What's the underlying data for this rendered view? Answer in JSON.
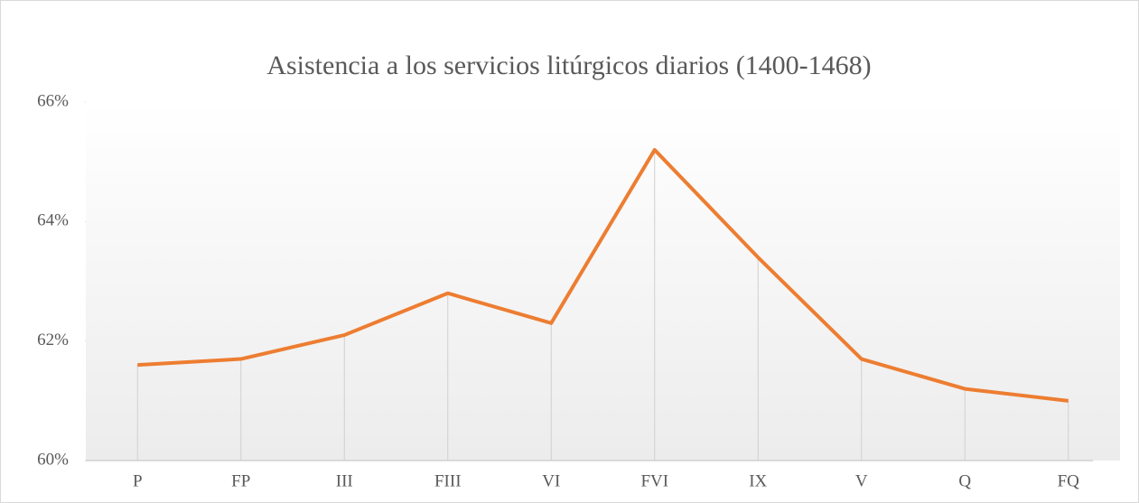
{
  "chart_data": {
    "type": "line",
    "title": "Asistencia a los servicios litúrgicos diarios (1400-1468)",
    "categories": [
      "P",
      "FP",
      "III",
      "FIII",
      "VI",
      "FVI",
      "IX",
      "V",
      "Q",
      "FQ"
    ],
    "series": [
      {
        "name": "Asistencia",
        "color": "#ed7d31",
        "values": [
          61.6,
          61.7,
          62.1,
          62.8,
          62.3,
          65.2,
          63.4,
          61.7,
          61.2,
          61.0
        ]
      }
    ],
    "ylim": [
      60,
      66
    ],
    "yticks": [
      {
        "value": 60,
        "label": "60%"
      },
      {
        "value": 62,
        "label": "62%"
      },
      {
        "value": 64,
        "label": "64%"
      },
      {
        "value": 66,
        "label": "66%"
      }
    ],
    "drop_lines": true
  }
}
